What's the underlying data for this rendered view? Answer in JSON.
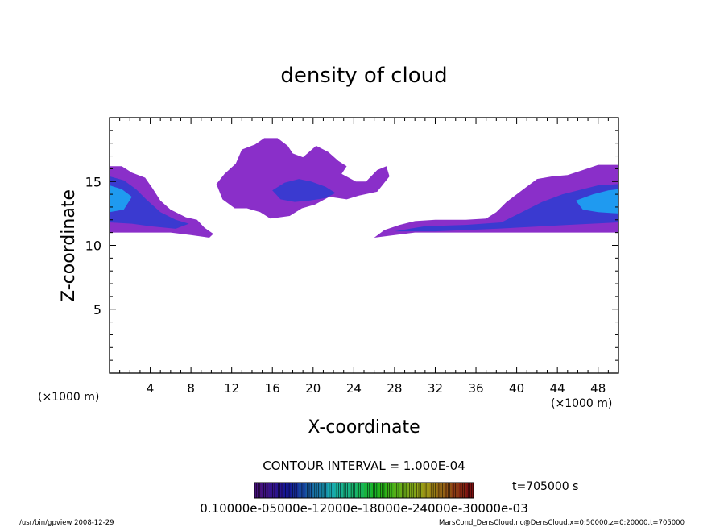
{
  "chart_data": {
    "type": "heatmap",
    "title": "density of cloud",
    "xlabel": "X-coordinate",
    "ylabel": "Z-coordinate",
    "x_unit_left": "(×1000 m)",
    "x_unit_right": "(×1000 m)",
    "xlim": [
      0,
      50
    ],
    "ylim": [
      0,
      20
    ],
    "xticks": [
      "4",
      "8",
      "12",
      "16",
      "20",
      "24",
      "28",
      "32",
      "36",
      "40",
      "44",
      "48"
    ],
    "yticks": [
      "5",
      "10",
      "15"
    ],
    "contour_interval": "CONTOUR INTERVAL = 1.000E-04",
    "time_label": "t=705000 s",
    "colorbar_labels": "0.10000e-05000e-12000e-18000e-24000e-30000e-03",
    "colorbar_levels": [
      0.0001,
      0.0002,
      0.0003,
      0.0004,
      0.0005,
      0.0006,
      0.0007,
      0.0008,
      0.0009,
      0.001,
      0.0011,
      0.0012,
      0.0013,
      0.0014,
      0.0015,
      0.0016,
      0.0017,
      0.0018,
      0.0019,
      0.002,
      0.0021,
      0.0022,
      0.0023,
      0.0024,
      0.0025,
      0.0026,
      0.0027,
      0.0028,
      0.0029,
      0.003
    ],
    "regions": [
      {
        "name": "left-band",
        "points": [
          [
            0,
            16.2
          ],
          [
            1.2,
            16.2
          ],
          [
            2.2,
            15.7
          ],
          [
            3.5,
            15.3
          ],
          [
            4.2,
            14.5
          ],
          [
            5,
            13.5
          ],
          [
            6,
            12.8
          ],
          [
            7.5,
            12.2
          ],
          [
            8.6,
            12.0
          ],
          [
            9.3,
            11.4
          ],
          [
            10.2,
            10.9
          ],
          [
            9.8,
            10.6
          ],
          [
            8,
            10.8
          ],
          [
            6,
            11.0
          ],
          [
            0,
            11.0
          ]
        ],
        "level": 0.0001
      },
      {
        "name": "left-band-core",
        "points": [
          [
            0,
            15.4
          ],
          [
            1.4,
            15.1
          ],
          [
            2.6,
            14.4
          ],
          [
            3.6,
            13.6
          ],
          [
            5,
            12.6
          ],
          [
            6.5,
            12.0
          ],
          [
            7.8,
            11.7
          ],
          [
            6.5,
            11.3
          ],
          [
            4,
            11.5
          ],
          [
            2.2,
            11.7
          ],
          [
            0,
            11.8
          ]
        ],
        "level": 0.0004
      },
      {
        "name": "left-band-peak",
        "points": [
          [
            0,
            14.7
          ],
          [
            1.2,
            14.4
          ],
          [
            2.2,
            13.8
          ],
          [
            1.4,
            12.8
          ],
          [
            0,
            12.6
          ]
        ],
        "level": 0.001
      },
      {
        "name": "upper-cloud",
        "points": [
          [
            10.5,
            14.8
          ],
          [
            11.3,
            15.6
          ],
          [
            12.4,
            16.4
          ],
          [
            13,
            17.5
          ],
          [
            14.3,
            17.9
          ],
          [
            15.2,
            18.4
          ],
          [
            16.5,
            18.4
          ],
          [
            17.5,
            17.8
          ],
          [
            18,
            17.2
          ],
          [
            19,
            16.9
          ],
          [
            20.3,
            17.8
          ],
          [
            21.5,
            17.3
          ],
          [
            22.5,
            16.6
          ],
          [
            23.3,
            16.2
          ],
          [
            22.8,
            15.6
          ],
          [
            24.2,
            15.0
          ],
          [
            25.2,
            15.0
          ],
          [
            26.3,
            15.9
          ],
          [
            27.2,
            16.2
          ],
          [
            27.5,
            15.4
          ],
          [
            26.3,
            14.2
          ],
          [
            24.5,
            13.9
          ],
          [
            23.3,
            13.6
          ],
          [
            21.6,
            13.8
          ],
          [
            20.2,
            13.2
          ],
          [
            18.9,
            12.9
          ],
          [
            17.7,
            12.3
          ],
          [
            15.8,
            12.1
          ],
          [
            14.8,
            12.6
          ],
          [
            13.5,
            12.9
          ],
          [
            12.3,
            12.9
          ],
          [
            11.1,
            13.6
          ]
        ],
        "level": 0.0001
      },
      {
        "name": "upper-cloud-core",
        "points": [
          [
            16,
            14.3
          ],
          [
            17.2,
            14.9
          ],
          [
            18.6,
            15.2
          ],
          [
            19.8,
            15.0
          ],
          [
            21.2,
            14.6
          ],
          [
            22.2,
            14.1
          ],
          [
            21.2,
            13.7
          ],
          [
            19.6,
            13.5
          ],
          [
            18.2,
            13.4
          ],
          [
            16.8,
            13.6
          ]
        ],
        "level": 0.0004
      },
      {
        "name": "right-band",
        "points": [
          [
            26,
            10.6
          ],
          [
            27,
            11.2
          ],
          [
            28.5,
            11.6
          ],
          [
            30,
            11.9
          ],
          [
            32,
            12.0
          ],
          [
            35,
            12.0
          ],
          [
            37,
            12.1
          ],
          [
            38,
            12.6
          ],
          [
            39,
            13.4
          ],
          [
            40,
            14.0
          ],
          [
            41,
            14.6
          ],
          [
            42,
            15.2
          ],
          [
            43.5,
            15.4
          ],
          [
            45,
            15.5
          ],
          [
            46.5,
            15.9
          ],
          [
            48,
            16.3
          ],
          [
            50,
            16.3
          ],
          [
            50,
            11.0
          ],
          [
            45,
            11.0
          ],
          [
            38,
            11.0
          ],
          [
            30,
            11.0
          ],
          [
            27,
            10.7
          ]
        ],
        "level": 0.0001
      },
      {
        "name": "right-band-core",
        "points": [
          [
            28,
            11.1
          ],
          [
            31,
            11.5
          ],
          [
            35,
            11.6
          ],
          [
            38.5,
            11.8
          ],
          [
            40,
            12.4
          ],
          [
            42.5,
            13.4
          ],
          [
            44.5,
            14.0
          ],
          [
            46.5,
            14.4
          ],
          [
            48,
            14.7
          ],
          [
            50,
            14.8
          ],
          [
            50,
            11.8
          ],
          [
            45,
            11.6
          ],
          [
            38,
            11.3
          ],
          [
            32,
            11.1
          ]
        ],
        "level": 0.0004
      },
      {
        "name": "right-band-peak",
        "points": [
          [
            45.8,
            13.5
          ],
          [
            47.5,
            14.0
          ],
          [
            49,
            14.3
          ],
          [
            50,
            14.4
          ],
          [
            50,
            12.5
          ],
          [
            48,
            12.6
          ],
          [
            46.5,
            12.8
          ]
        ],
        "level": 0.001
      }
    ]
  },
  "footer": {
    "left": "/usr/bin/gpview   2008-12-29",
    "right": "MarsCond_DensCloud.nc@DensCloud,x=0:50000,z=0:20000,t=705000"
  },
  "colors": {
    "low": "#8a2fc9",
    "mid": "#3a3ad0",
    "high": "#1f9af0"
  }
}
